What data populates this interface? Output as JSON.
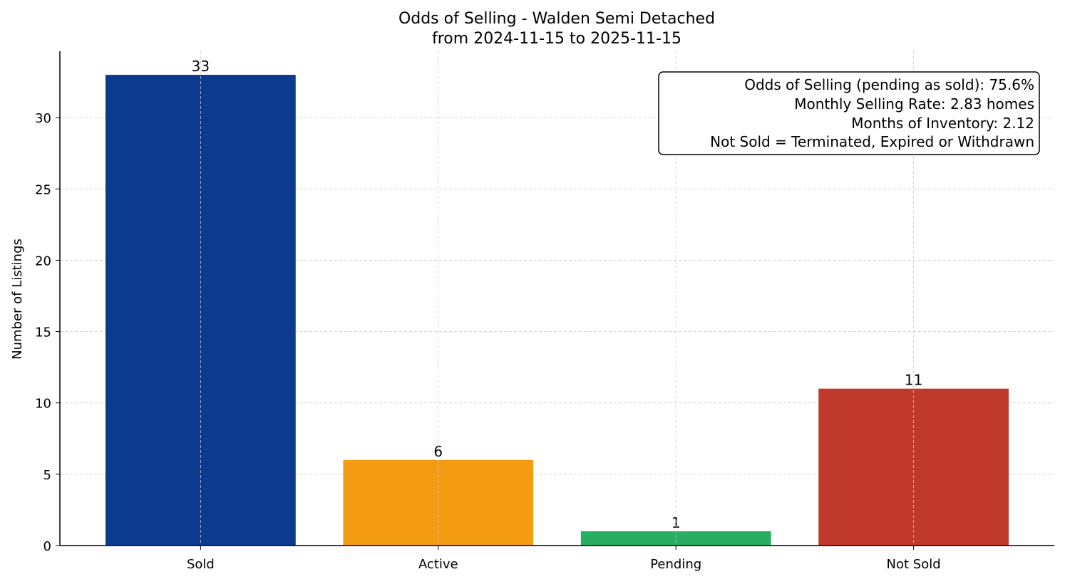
{
  "chart_data": {
    "type": "bar",
    "title": "Odds of Selling - Walden Semi Detached",
    "subtitle": "from 2024-11-15 to 2025-11-15",
    "xlabel": "",
    "ylabel": "Number of Listings",
    "categories": [
      "Sold",
      "Active",
      "Pending",
      "Not Sold"
    ],
    "values": [
      33,
      6,
      1,
      11
    ],
    "data_labels": [
      "33",
      "6",
      "1",
      "11"
    ],
    "colors": [
      "#0b3a8f",
      "#f39c12",
      "#27ae60",
      "#c0392b"
    ],
    "ylim": [
      0,
      34.65
    ],
    "yticks": [
      0,
      5,
      10,
      15,
      20,
      25,
      30
    ],
    "grid": true,
    "annotation": [
      "Odds of Selling (pending as sold): 75.6%",
      "Monthly Selling Rate: 2.83 homes",
      "Months of Inventory: 2.12",
      "Not Sold = Terminated, Expired or Withdrawn"
    ],
    "annotation_placement": "top-right"
  }
}
